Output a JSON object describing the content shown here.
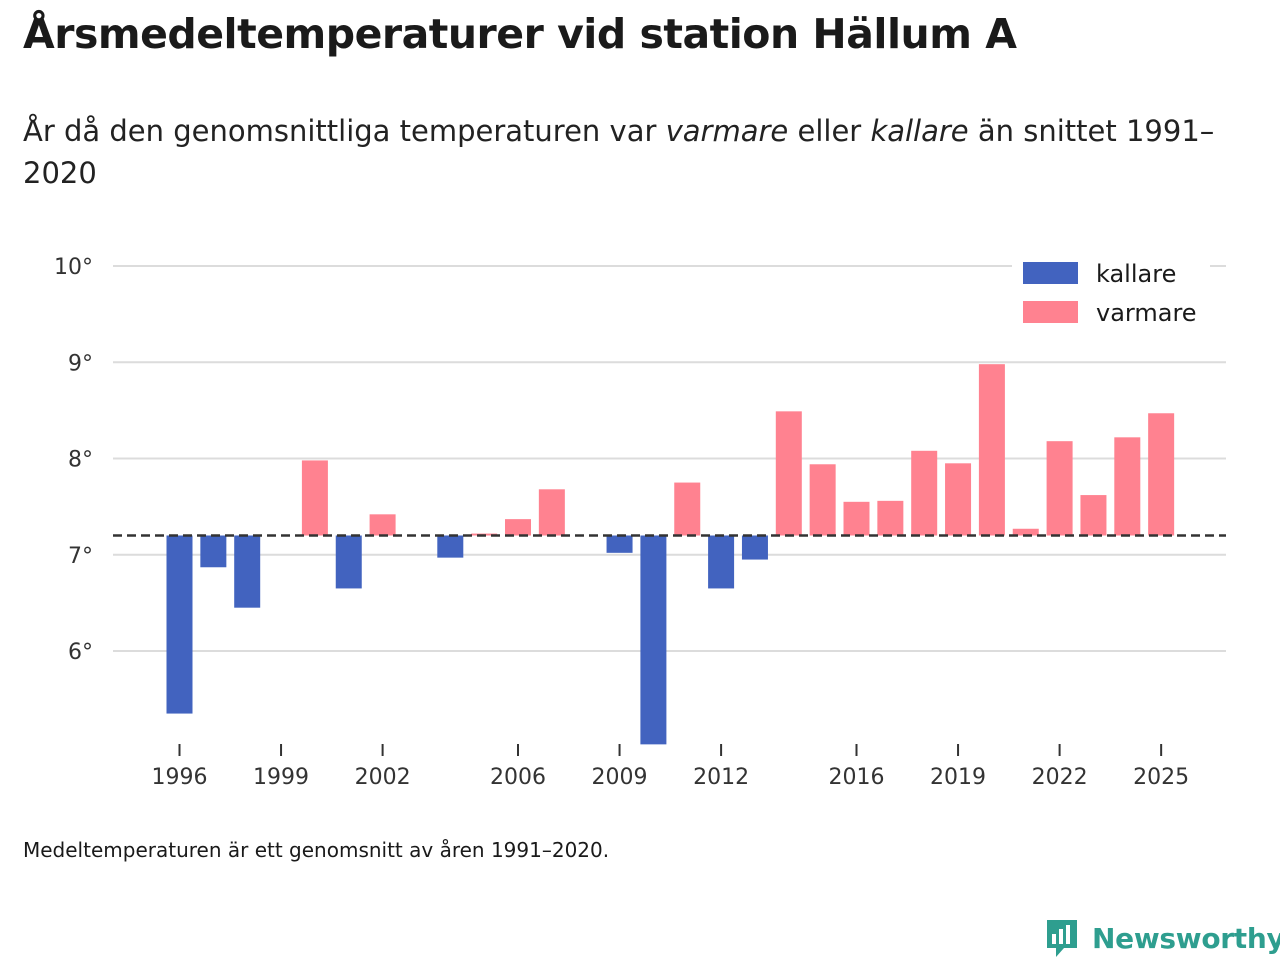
{
  "title": "Årsmedeltemperaturer vid station Hällum A",
  "subtitle": {
    "part1": "År då den genomsnittliga temperaturen var ",
    "warm_word": "varmare",
    "part2": " eller ",
    "cold_word": "kallare",
    "part3": " än snittet 1991–2020"
  },
  "footnote": "Medeltemperaturen är ett genomsnitt av åren 1991–2020.",
  "brand": "Newsworthy",
  "colors": {
    "kallare": "#4263bf",
    "varmare": "#ff8290",
    "grid": "#dcdcdc",
    "baseline": "#333333"
  },
  "chart_data": {
    "type": "bar",
    "title": "Årsmedeltemperaturer vid station Hällum A",
    "baseline": 7.2,
    "ylim": [
      5.0,
      10.0
    ],
    "yticks": [
      6,
      7,
      8,
      9,
      10
    ],
    "ytick_labels": [
      "6°",
      "7°",
      "8°",
      "9°",
      "10°"
    ],
    "xticks": [
      1996,
      1999,
      2002,
      2006,
      2009,
      2012,
      2016,
      2019,
      2022,
      2025
    ],
    "xtick_labels": [
      "1996",
      "1999",
      "2002",
      "2006",
      "2009",
      "2012",
      "2016",
      "2019",
      "2022",
      "2025"
    ],
    "legend": {
      "placement": "top-right",
      "kallare": "kallare",
      "varmare": "varmare"
    },
    "years": [
      1996,
      1997,
      1998,
      1999,
      2000,
      2001,
      2002,
      2003,
      2004,
      2005,
      2006,
      2007,
      2008,
      2009,
      2010,
      2011,
      2012,
      2013,
      2014,
      2015,
      2016,
      2017,
      2018,
      2019,
      2020,
      2021,
      2022,
      2023,
      2024,
      2025
    ],
    "values": [
      5.35,
      6.87,
      6.45,
      null,
      7.98,
      6.65,
      7.42,
      null,
      6.97,
      7.22,
      7.37,
      7.68,
      null,
      7.02,
      5.03,
      7.75,
      6.65,
      6.95,
      8.49,
      7.94,
      7.55,
      7.56,
      8.08,
      7.95,
      8.98,
      7.27,
      8.18,
      7.62,
      8.22,
      8.47
    ]
  }
}
